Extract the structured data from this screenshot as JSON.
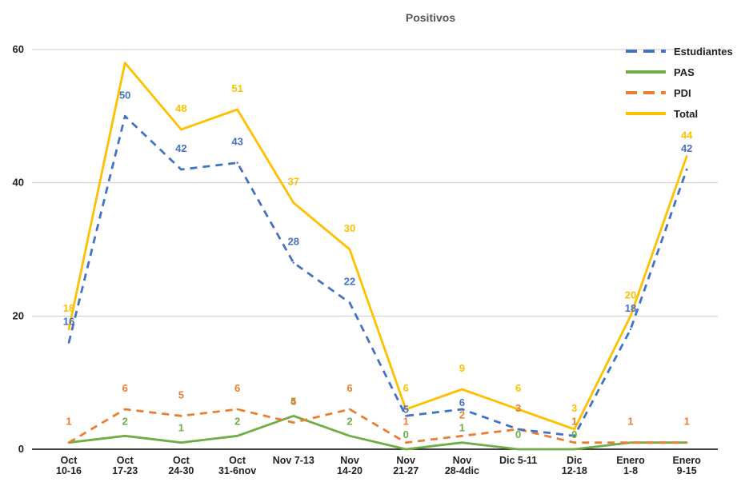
{
  "chart_data": {
    "type": "line",
    "title": "Positivos",
    "xlabel": "",
    "ylabel": "",
    "ylim": [
      0,
      60
    ],
    "yticks": [
      "0",
      "20",
      "40",
      "60"
    ],
    "grid": true,
    "legend_position": "top-right",
    "categories": [
      [
        "Oct",
        "10-16"
      ],
      [
        "Oct",
        "17-23"
      ],
      [
        "Oct",
        "24-30"
      ],
      [
        "Oct",
        "31-6nov"
      ],
      [
        "Nov 7-13"
      ],
      [
        "Nov",
        "14-20"
      ],
      [
        "Nov",
        "21-27"
      ],
      [
        "Nov",
        "28-4dic"
      ],
      [
        "Dic 5-11"
      ],
      [
        "Dic",
        "12-18"
      ],
      [
        "Enero",
        "1-8"
      ],
      [
        "Enero",
        "9-15"
      ]
    ],
    "series": [
      {
        "name": "Estudiantes",
        "color": "#4472c4",
        "dash": true,
        "values": [
          16,
          50,
          42,
          43,
          28,
          22,
          5,
          6,
          3,
          2,
          18,
          42
        ]
      },
      {
        "name": "PAS",
        "color": "#70ad47",
        "dash": false,
        "values": [
          1,
          2,
          1,
          2,
          5,
          2,
          0,
          1,
          0,
          0,
          1,
          1
        ]
      },
      {
        "name": "PDI",
        "color": "#ed7d31",
        "dash": true,
        "values": [
          1,
          6,
          5,
          6,
          4,
          6,
          1,
          2,
          3,
          1,
          1,
          1
        ]
      },
      {
        "name": "Total",
        "color": "#ffc000",
        "dash": false,
        "values": [
          18,
          58,
          48,
          51,
          37,
          30,
          6,
          9,
          6,
          3,
          20,
          44
        ]
      }
    ],
    "data_labels": [
      {
        "series": 0,
        "values": [
          "16",
          "50",
          "42",
          "43",
          "28",
          "22",
          "5",
          "6",
          "",
          "",
          "18",
          "42"
        ]
      },
      {
        "series": 1,
        "values": [
          "",
          "2",
          "1",
          "2",
          "5",
          "2",
          "0",
          "1",
          "0",
          "0",
          "",
          ""
        ]
      },
      {
        "series": 2,
        "values": [
          "1",
          "6",
          "5",
          "6",
          "4",
          "6",
          "1",
          "2",
          "3",
          "1",
          "1",
          "1"
        ]
      },
      {
        "series": 3,
        "values": [
          "18",
          "",
          "48",
          "51",
          "37",
          "30",
          "6",
          "9",
          "6",
          "3",
          "20",
          "44"
        ]
      }
    ]
  }
}
